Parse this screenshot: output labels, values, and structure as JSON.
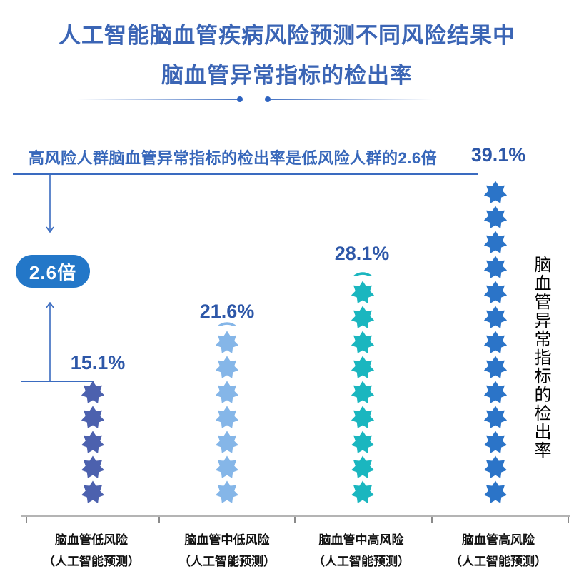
{
  "title": {
    "line1": "人工智能脑血管疾病风险预测不同风险结果中",
    "line2": "脑血管异常指标的检出率"
  },
  "annotation": {
    "text": "高风险人群脑血管异常指标的检出率是低风险人群的2.6倍"
  },
  "ratio_badge": {
    "label": "2.6倍"
  },
  "colors": {
    "title_blue": "#3b65b5",
    "annotation_blue": "#3767ba",
    "value_label_blue": "#2d57a8",
    "guide_line_blue": "#3a6bc0",
    "badge_bg": "#2377c8",
    "badge_text": "#ffffff",
    "axis_gray": "#b4b4b4",
    "category_label_black": "#111111"
  },
  "chart_data": {
    "type": "pictogram-bar",
    "icon": "seven-pointed-star",
    "title": "人工智能脑血管疾病风险预测不同风险结果中脑血管异常指标的检出率",
    "ylabel": "脑血管异常指标的检出率",
    "annotation": "高风险人群脑血管异常指标的检出率是低风险人群的2.6倍",
    "ratio_label": "2.6倍",
    "approx_pct_per_icon": 3,
    "legend": "none",
    "grid": false,
    "categories": [
      {
        "label_line1": "脑血管低风险",
        "label_line2": "（人工智能预测）",
        "value_pct": 15.1,
        "value_label": "15.1%",
        "full_icons": 5,
        "partial_icon": false,
        "color": "#4c61ae"
      },
      {
        "label_line1": "脑血管中低风险",
        "label_line2": "（人工智能预测）",
        "value_pct": 21.6,
        "value_label": "21.6%",
        "full_icons": 7,
        "partial_icon": true,
        "color": "#85b6e8"
      },
      {
        "label_line1": "脑血管中高风险",
        "label_line2": "（人工智能预测）",
        "value_pct": 28.1,
        "value_label": "28.1%",
        "full_icons": 9,
        "partial_icon": true,
        "color": "#1ab6bf"
      },
      {
        "label_line1": "脑血管高风险",
        "label_line2": "（人工智能预测）",
        "value_pct": 39.1,
        "value_label": "39.1%",
        "full_icons": 13,
        "partial_icon": false,
        "color": "#2b74c8"
      }
    ]
  }
}
